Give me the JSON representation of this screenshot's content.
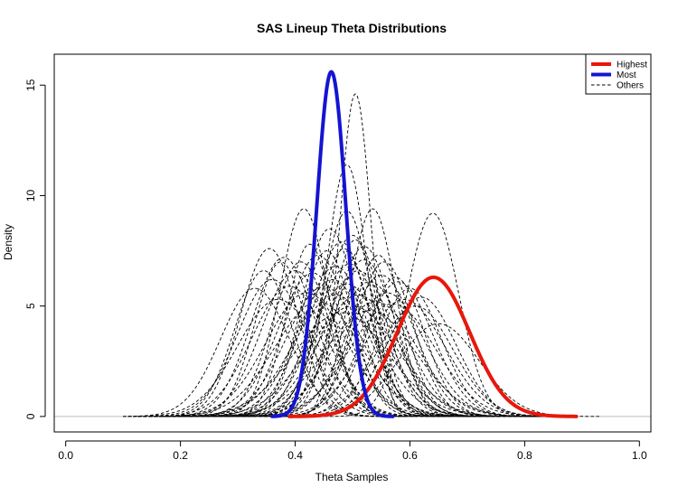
{
  "chart_data": {
    "type": "line",
    "title": "SAS Lineup Theta Distributions",
    "xlabel": "Theta Samples",
    "ylabel": "Density",
    "xlim": [
      -0.02,
      1.02
    ],
    "ylim": [
      -0.7,
      16.4
    ],
    "x_ticks": [
      0.0,
      0.2,
      0.4,
      0.6,
      0.8,
      1.0
    ],
    "x_tick_labels": [
      "0.0",
      "0.2",
      "0.4",
      "0.6",
      "0.8",
      "1.0"
    ],
    "y_ticks": [
      0,
      5,
      10,
      15
    ],
    "y_tick_labels": [
      "0",
      "5",
      "10",
      "15"
    ],
    "baseline": {
      "y": 0,
      "color": "#bebebe"
    },
    "legend": {
      "position": "top-right",
      "entries": [
        {
          "label": "Highest",
          "color": "#e8170c",
          "style": "solid"
        },
        {
          "label": "Most",
          "color": "#1414d2",
          "style": "solid"
        },
        {
          "label": "Others",
          "color": "#000000",
          "style": "dashed"
        }
      ]
    },
    "series": [
      {
        "name": "Highest",
        "color": "#e8170c",
        "style": "solid",
        "x_range": [
          0.39,
          0.89
        ],
        "components": [
          {
            "mu": 0.641,
            "sigma": 0.063,
            "peak": 6.3
          }
        ]
      },
      {
        "name": "Most",
        "color": "#1414d2",
        "style": "solid",
        "x_range": [
          0.36,
          0.57
        ],
        "components": [
          {
            "mu": 0.463,
            "sigma": 0.0255,
            "peak": 15.6
          }
        ]
      },
      {
        "name": "Others",
        "color": "#000000",
        "style": "dashed",
        "curves": [
          {
            "mu": 0.505,
            "sigma": 0.027,
            "peak": 14.6
          },
          {
            "mu": 0.49,
            "sigma": 0.035,
            "peak": 11.4
          },
          {
            "mu": 0.49,
            "sigma": 0.043,
            "peak": 9.3
          },
          {
            "mu": 0.535,
            "sigma": 0.04,
            "peak": 9.4
          },
          {
            "mu": 0.415,
            "sigma": 0.042,
            "peak": 9.4
          },
          {
            "mu": 0.64,
            "sigma": 0.045,
            "peak": 9.2
          },
          {
            "mu": 0.355,
            "sigma": 0.05,
            "peak": 7.6
          },
          {
            "mu": 0.38,
            "sigma": 0.055,
            "peak": 7.2
          },
          {
            "mu": 0.46,
            "sigma": 0.048,
            "peak": 8.5
          },
          {
            "mu": 0.5,
            "sigma": 0.052,
            "peak": 8.2
          },
          {
            "mu": 0.48,
            "sigma": 0.05,
            "peak": 7.9
          },
          {
            "mu": 0.52,
            "sigma": 0.05,
            "peak": 7.7
          },
          {
            "mu": 0.44,
            "sigma": 0.055,
            "peak": 7.3
          },
          {
            "mu": 0.4,
            "sigma": 0.058,
            "peak": 6.6
          },
          {
            "mu": 0.43,
            "sigma": 0.06,
            "peak": 6.5
          },
          {
            "mu": 0.47,
            "sigma": 0.058,
            "peak": 6.8
          },
          {
            "mu": 0.51,
            "sigma": 0.06,
            "peak": 6.6
          },
          {
            "mu": 0.55,
            "sigma": 0.058,
            "peak": 6.4
          },
          {
            "mu": 0.58,
            "sigma": 0.06,
            "peak": 6.1
          },
          {
            "mu": 0.6,
            "sigma": 0.055,
            "peak": 5.8
          },
          {
            "mu": 0.36,
            "sigma": 0.06,
            "peak": 6.2
          },
          {
            "mu": 0.39,
            "sigma": 0.065,
            "peak": 5.9
          },
          {
            "mu": 0.45,
            "sigma": 0.065,
            "peak": 5.9
          },
          {
            "mu": 0.49,
            "sigma": 0.065,
            "peak": 6.0
          },
          {
            "mu": 0.53,
            "sigma": 0.062,
            "peak": 6.1
          },
          {
            "mu": 0.56,
            "sigma": 0.066,
            "peak": 5.6
          },
          {
            "mu": 0.62,
            "sigma": 0.06,
            "peak": 5.4
          },
          {
            "mu": 0.42,
            "sigma": 0.07,
            "peak": 5.6
          },
          {
            "mu": 0.47,
            "sigma": 0.072,
            "peak": 5.5
          },
          {
            "mu": 0.51,
            "sigma": 0.07,
            "peak": 5.5
          },
          {
            "mu": 0.54,
            "sigma": 0.072,
            "peak": 5.2
          },
          {
            "mu": 0.44,
            "sigma": 0.075,
            "peak": 5.2
          },
          {
            "mu": 0.5,
            "sigma": 0.078,
            "peak": 5.0
          },
          {
            "mu": 0.57,
            "sigma": 0.074,
            "peak": 5.1
          },
          {
            "mu": 0.59,
            "sigma": 0.07,
            "peak": 5.3
          },
          {
            "mu": 0.37,
            "sigma": 0.07,
            "peak": 5.3
          },
          {
            "mu": 0.33,
            "sigma": 0.06,
            "peak": 5.8
          },
          {
            "mu": 0.41,
            "sigma": 0.05,
            "peak": 7.0
          },
          {
            "mu": 0.455,
            "sigma": 0.045,
            "peak": 7.5
          },
          {
            "mu": 0.485,
            "sigma": 0.045,
            "peak": 7.6
          },
          {
            "mu": 0.52,
            "sigma": 0.055,
            "peak": 7.1
          },
          {
            "mu": 0.555,
            "sigma": 0.05,
            "peak": 7.0
          },
          {
            "mu": 0.495,
            "sigma": 0.06,
            "peak": 6.9
          },
          {
            "mu": 0.465,
            "sigma": 0.062,
            "peak": 6.2
          },
          {
            "mu": 0.53,
            "sigma": 0.08,
            "peak": 4.8
          },
          {
            "mu": 0.48,
            "sigma": 0.082,
            "peak": 4.7
          },
          {
            "mu": 0.61,
            "sigma": 0.065,
            "peak": 5.0
          },
          {
            "mu": 0.65,
            "sigma": 0.07,
            "peak": 4.2
          },
          {
            "mu": 0.345,
            "sigma": 0.05,
            "peak": 6.6
          },
          {
            "mu": 0.375,
            "sigma": 0.045,
            "peak": 7.0
          },
          {
            "mu": 0.425,
            "sigma": 0.04,
            "peak": 7.8
          },
          {
            "mu": 0.505,
            "sigma": 0.04,
            "peak": 8.0
          },
          {
            "mu": 0.545,
            "sigma": 0.045,
            "peak": 7.3
          },
          {
            "mu": 0.575,
            "sigma": 0.05,
            "peak": 6.3
          }
        ]
      }
    ]
  }
}
